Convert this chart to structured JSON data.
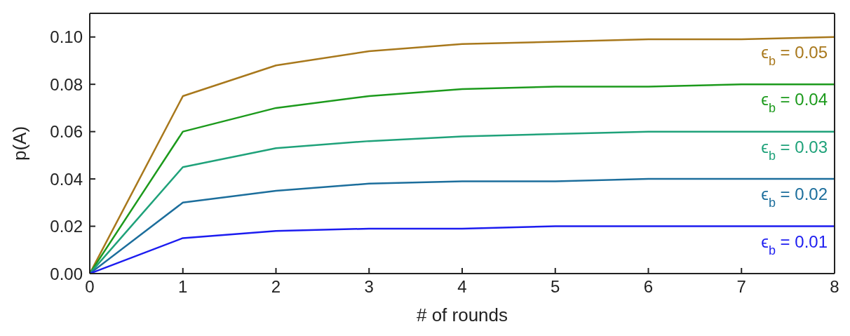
{
  "chart_data": {
    "type": "line",
    "xlabel": "# of rounds",
    "ylabel": "p(A)",
    "x": [
      0,
      1,
      2,
      3,
      4,
      5,
      6,
      7,
      8
    ],
    "xlim": [
      0,
      8
    ],
    "xticks": [
      0,
      1,
      2,
      3,
      4,
      5,
      6,
      7,
      8
    ],
    "ylim": [
      0,
      0.11
    ],
    "yticks": [
      {
        "value": 0,
        "label": "0.00"
      },
      {
        "value": 0.02,
        "label": "0.02"
      },
      {
        "value": 0.04,
        "label": "0.04"
      },
      {
        "value": 0.06,
        "label": "0.06"
      },
      {
        "value": 0.08,
        "label": "0.08"
      },
      {
        "value": 0.1,
        "label": "0.10"
      }
    ],
    "grid": false,
    "legend": false,
    "marker": "none",
    "line_style": "solid",
    "series": [
      {
        "name": "ϵ$_{b}$ = 0.05",
        "color": "#a8781c",
        "values": [
          0,
          0.075,
          0.088,
          0.094,
          0.097,
          0.098,
          0.099,
          0.099,
          0.1
        ]
      },
      {
        "name": "ϵ$_{b}$ = 0.04",
        "color": "#1c9a1c",
        "values": [
          0,
          0.06,
          0.07,
          0.075,
          0.078,
          0.079,
          0.079,
          0.08,
          0.08
        ]
      },
      {
        "name": "ϵ$_{b}$ = 0.03",
        "color": "#1fa27a",
        "values": [
          0,
          0.045,
          0.053,
          0.056,
          0.058,
          0.059,
          0.06,
          0.06,
          0.06
        ]
      },
      {
        "name": "ϵ$_{b}$ = 0.02",
        "color": "#1c6e9c",
        "values": [
          0,
          0.03,
          0.035,
          0.038,
          0.039,
          0.039,
          0.04,
          0.04,
          0.04
        ]
      },
      {
        "name": "ϵ$_{b}$ = 0.01",
        "color": "#1c1cf0",
        "values": [
          0,
          0.015,
          0.018,
          0.019,
          0.019,
          0.02,
          0.02,
          0.02,
          0.02
        ]
      }
    ]
  }
}
